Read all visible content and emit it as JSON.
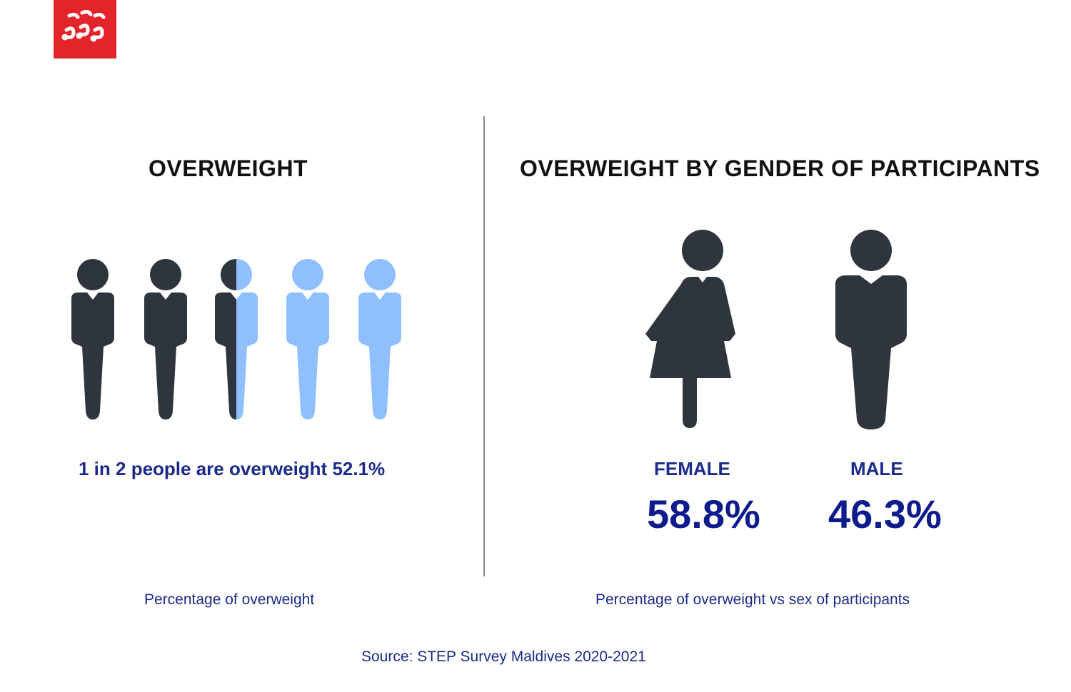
{
  "colors": {
    "brand_red": "#e3242b",
    "dark_figure": "#2f353d",
    "light_figure": "#8fbfff",
    "accent_text": "#1b2b8a"
  },
  "logo": {
    "icon": "maldives-logo-icon"
  },
  "left_panel": {
    "title": "OVERWEIGHT",
    "stat_text": "1 in 2 people are overweight 52.1%",
    "caption": "Percentage of overweight"
  },
  "right_panel": {
    "title": "OVERWEIGHT BY GENDER OF PARTICIPANTS",
    "female": {
      "label": "FEMALE",
      "value": "58.8%"
    },
    "male": {
      "label": "MALE",
      "value": "46.3%"
    },
    "caption": "Percentage of overweight vs sex of participants"
  },
  "source": "Source: STEP Survey Maldives 2020-2021",
  "chart_data": [
    {
      "type": "pictogram",
      "title": "OVERWEIGHT",
      "icon_count": 5,
      "filled_icons": 2.5,
      "value_percent": 52.1,
      "caption": "Percentage of overweight"
    },
    {
      "type": "bar",
      "title": "OVERWEIGHT BY GENDER OF PARTICIPANTS",
      "categories": [
        "FEMALE",
        "MALE"
      ],
      "values": [
        58.8,
        46.3
      ],
      "unit": "%",
      "caption": "Percentage of overweight vs sex of participants"
    }
  ]
}
